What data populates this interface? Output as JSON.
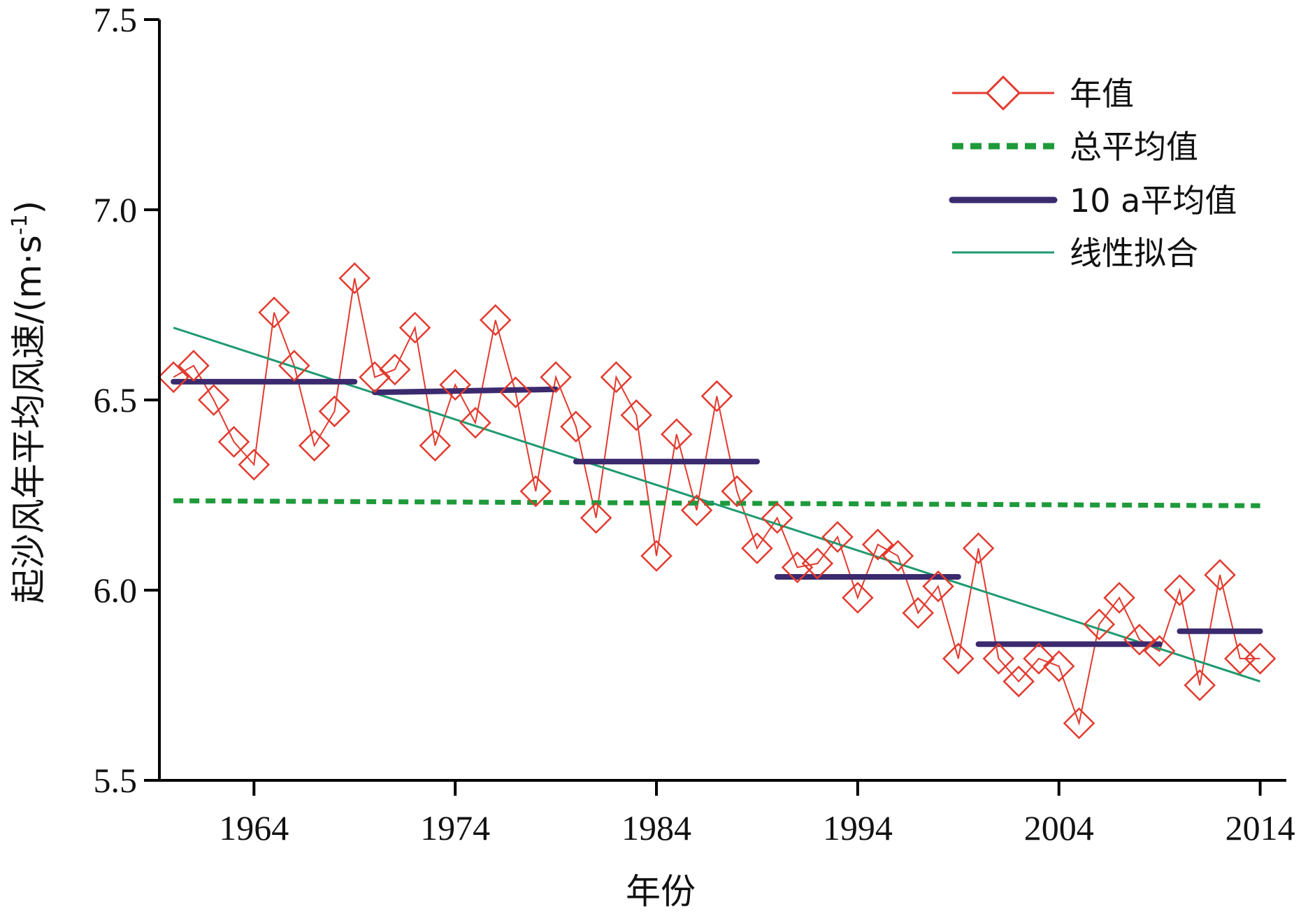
{
  "chart_data": {
    "type": "line",
    "title": "",
    "xlabel": "年份",
    "ylabel": "起沙风年平均风速/(m·s",
    "ylabel_sup": "-1",
    "ylabel_close": ")",
    "xlim": [
      1959.3,
      2015.3
    ],
    "ylim": [
      5.5,
      7.5
    ],
    "x_ticks": [
      1964,
      1974,
      1984,
      1994,
      2004,
      2014
    ],
    "x_tick_labels": [
      "1964",
      "1974",
      "1984",
      "1994",
      "2004",
      "2014"
    ],
    "y_ticks": [
      5.5,
      6.0,
      6.5,
      7.0,
      7.5
    ],
    "y_tick_labels": [
      "5.5",
      "6.0",
      "6.5",
      "7.0",
      "7.5"
    ],
    "grid": false,
    "legend_position": "top-right",
    "series": [
      {
        "name": "年值",
        "kind": "line-marker",
        "color": "#e23a2e",
        "marker": "diamond",
        "x": [
          1960,
          1961,
          1962,
          1963,
          1964,
          1965,
          1966,
          1967,
          1968,
          1969,
          1970,
          1971,
          1972,
          1973,
          1974,
          1975,
          1976,
          1977,
          1978,
          1979,
          1980,
          1981,
          1982,
          1983,
          1984,
          1985,
          1986,
          1987,
          1988,
          1989,
          1990,
          1991,
          1992,
          1993,
          1994,
          1995,
          1996,
          1997,
          1998,
          1999,
          2000,
          2001,
          2002,
          2003,
          2004,
          2005,
          2006,
          2007,
          2008,
          2009,
          2010,
          2011,
          2012,
          2013,
          2014
        ],
        "values": [
          6.56,
          6.59,
          6.5,
          6.39,
          6.33,
          6.73,
          6.59,
          6.38,
          6.47,
          6.82,
          6.56,
          6.58,
          6.69,
          6.38,
          6.54,
          6.44,
          6.71,
          6.52,
          6.26,
          6.56,
          6.43,
          6.19,
          6.56,
          6.46,
          6.09,
          6.41,
          6.21,
          6.51,
          6.26,
          6.11,
          6.19,
          6.06,
          6.07,
          6.14,
          5.98,
          6.12,
          6.09,
          5.94,
          6.01,
          5.82,
          6.11,
          5.82,
          5.76,
          5.82,
          5.8,
          5.65,
          5.91,
          5.98,
          5.87,
          5.84,
          6.0,
          5.75,
          6.04,
          5.82,
          5.82
        ]
      },
      {
        "name": "总平均值",
        "kind": "dashed",
        "color": "#1f9a3b",
        "x": [
          1960,
          2014
        ],
        "values": [
          6.235,
          6.222
        ]
      },
      {
        "name": "10 a平均值",
        "kind": "segments",
        "color": "#3b2a6e",
        "segments": [
          {
            "x": [
              1960,
              1969
            ],
            "values": [
              6.548,
              6.548
            ]
          },
          {
            "x": [
              1970,
              1979
            ],
            "values": [
              6.52,
              6.528
            ]
          },
          {
            "x": [
              1980,
              1989
            ],
            "values": [
              6.338,
              6.338
            ]
          },
          {
            "x": [
              1990,
              1999
            ],
            "values": [
              6.035,
              6.035
            ]
          },
          {
            "x": [
              2000,
              2009
            ],
            "values": [
              5.858,
              5.858
            ]
          },
          {
            "x": [
              2010,
              2014
            ],
            "values": [
              5.892,
              5.892
            ]
          }
        ]
      },
      {
        "name": "线性拟合",
        "kind": "line",
        "color": "#1f9a6e",
        "x": [
          1960,
          2014
        ],
        "values": [
          6.69,
          5.76
        ]
      }
    ]
  }
}
